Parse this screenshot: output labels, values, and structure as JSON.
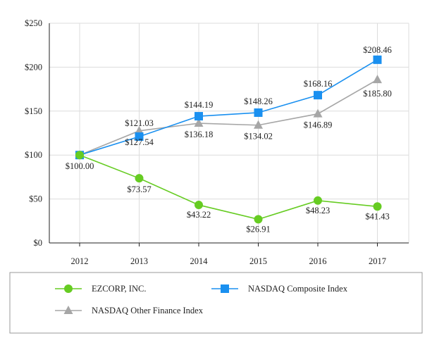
{
  "chart_data": {
    "type": "line",
    "title": "",
    "xlabel": "",
    "ylabel": "",
    "categories": [
      "2012",
      "2013",
      "2014",
      "2015",
      "2016",
      "2017"
    ],
    "ylim": [
      0,
      250
    ],
    "yticks": [
      0,
      50,
      100,
      150,
      200,
      250
    ],
    "ytick_labels": [
      "$0",
      "$50",
      "$100",
      "$150",
      "$200",
      "$250"
    ],
    "grid": true,
    "legend_position": "bottom",
    "series": [
      {
        "name": "EZCORP, INC.",
        "color": "#66cc22",
        "marker": "circle",
        "values": [
          100.0,
          73.57,
          43.22,
          26.91,
          48.23,
          41.43
        ],
        "labels": [
          "$100.00",
          "$73.57",
          "$43.22",
          "$26.91",
          "$48.23",
          "$41.43"
        ]
      },
      {
        "name": "NASDAQ Composite Index",
        "color": "#1a90f0",
        "marker": "square",
        "values": [
          100.0,
          121.03,
          144.19,
          148.26,
          168.16,
          208.46
        ],
        "labels": [
          "",
          "$121.03",
          "$144.19",
          "$148.26",
          "$168.16",
          "$208.46"
        ]
      },
      {
        "name": "NASDAQ Other Finance Index",
        "color": "#a6a6a6",
        "marker": "triangle",
        "values": [
          100.0,
          127.54,
          136.18,
          134.02,
          146.89,
          185.8
        ],
        "labels": [
          "",
          "$127.54",
          "$136.18",
          "$134.02",
          "$146.89",
          "$185.80"
        ]
      }
    ]
  }
}
